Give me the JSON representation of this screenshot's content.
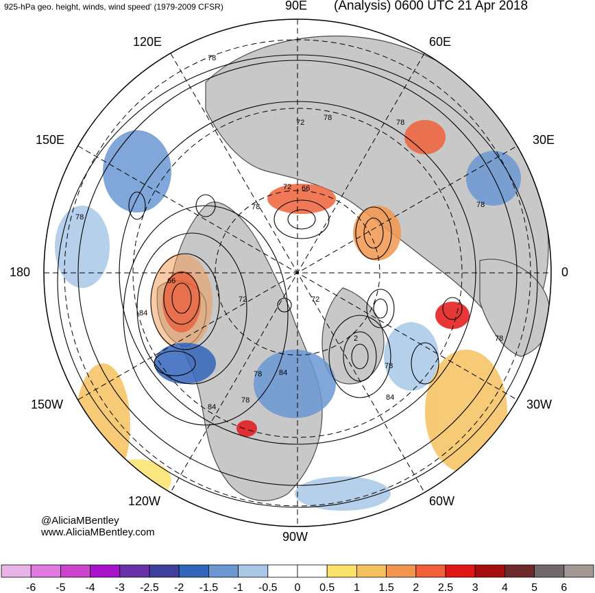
{
  "header": {
    "title_left": "925-hPa geo. height, winds, wind speed' (1979-2009 CFSR)",
    "title_right": "(Analysis) 0600 UTC 21 Apr 2018"
  },
  "map": {
    "projection": "north-polar-stereographic",
    "longitude_labels": {
      "90E": "90E",
      "120E": "120E",
      "60E": "60E",
      "150E": "150E",
      "30E": "30E",
      "180": "180",
      "0": "0",
      "150W": "150W",
      "30W": "30W",
      "120W": "120W",
      "60W": "60W",
      "90W": "90W"
    },
    "contour_labels": [
      "78",
      "72",
      "78",
      "78",
      "66",
      "72",
      "78",
      "78",
      "78",
      "66",
      "84",
      "72",
      "72",
      "2",
      "78",
      "84",
      "78",
      "84",
      "84",
      "78",
      "78"
    ],
    "colors": {
      "land": "#c8c8c8",
      "ocean": "#ffffff",
      "coast": "#444444",
      "contour": "#000000"
    }
  },
  "credits": {
    "line1": "@AliciaMBentley",
    "line2": "www.AliciaMBentley.com"
  },
  "colorbar": {
    "labels": [
      "-6",
      "-5",
      "-4",
      "-3",
      "-2.5",
      "-2",
      "-1.5",
      "-1",
      "-0.5",
      "0",
      "0.5",
      "1",
      "1.5",
      "2",
      "2.5",
      "3",
      "4",
      "5",
      "6"
    ],
    "colors": [
      "#e8b3e6",
      "#e07ae0",
      "#cc44cc",
      "#a812c9",
      "#6a32a8",
      "#3f3f9e",
      "#3366bb",
      "#6b98d3",
      "#a9c8e8",
      "#ffffff",
      "#ffffff",
      "#fbe26d",
      "#f5c15e",
      "#f2964f",
      "#f0613b",
      "#e31616",
      "#a60d0d",
      "#6e2a2a",
      "#706a6a",
      "#a39796"
    ]
  }
}
